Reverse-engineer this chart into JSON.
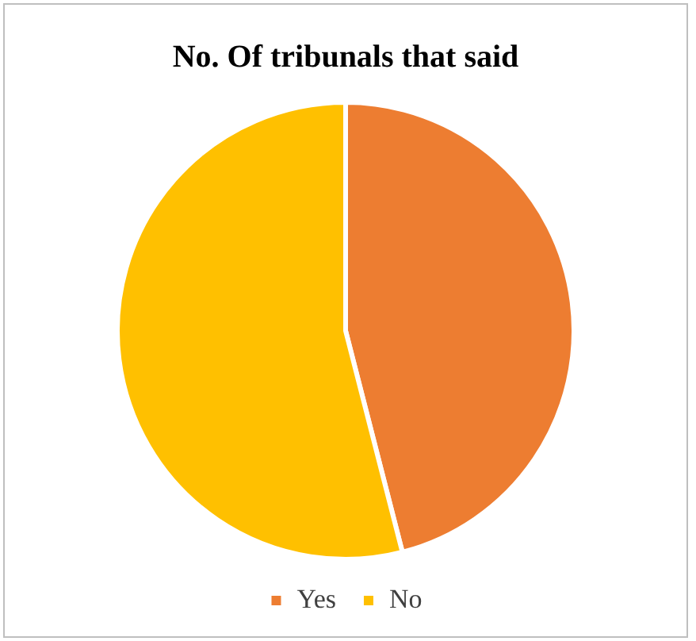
{
  "chart_data": {
    "type": "pie",
    "title": "No. Of tribunals that said",
    "categories": [
      "Yes",
      "No"
    ],
    "values": [
      46,
      54
    ],
    "colors": [
      "#ed7d31",
      "#ffc000"
    ],
    "legend": "bottom"
  }
}
